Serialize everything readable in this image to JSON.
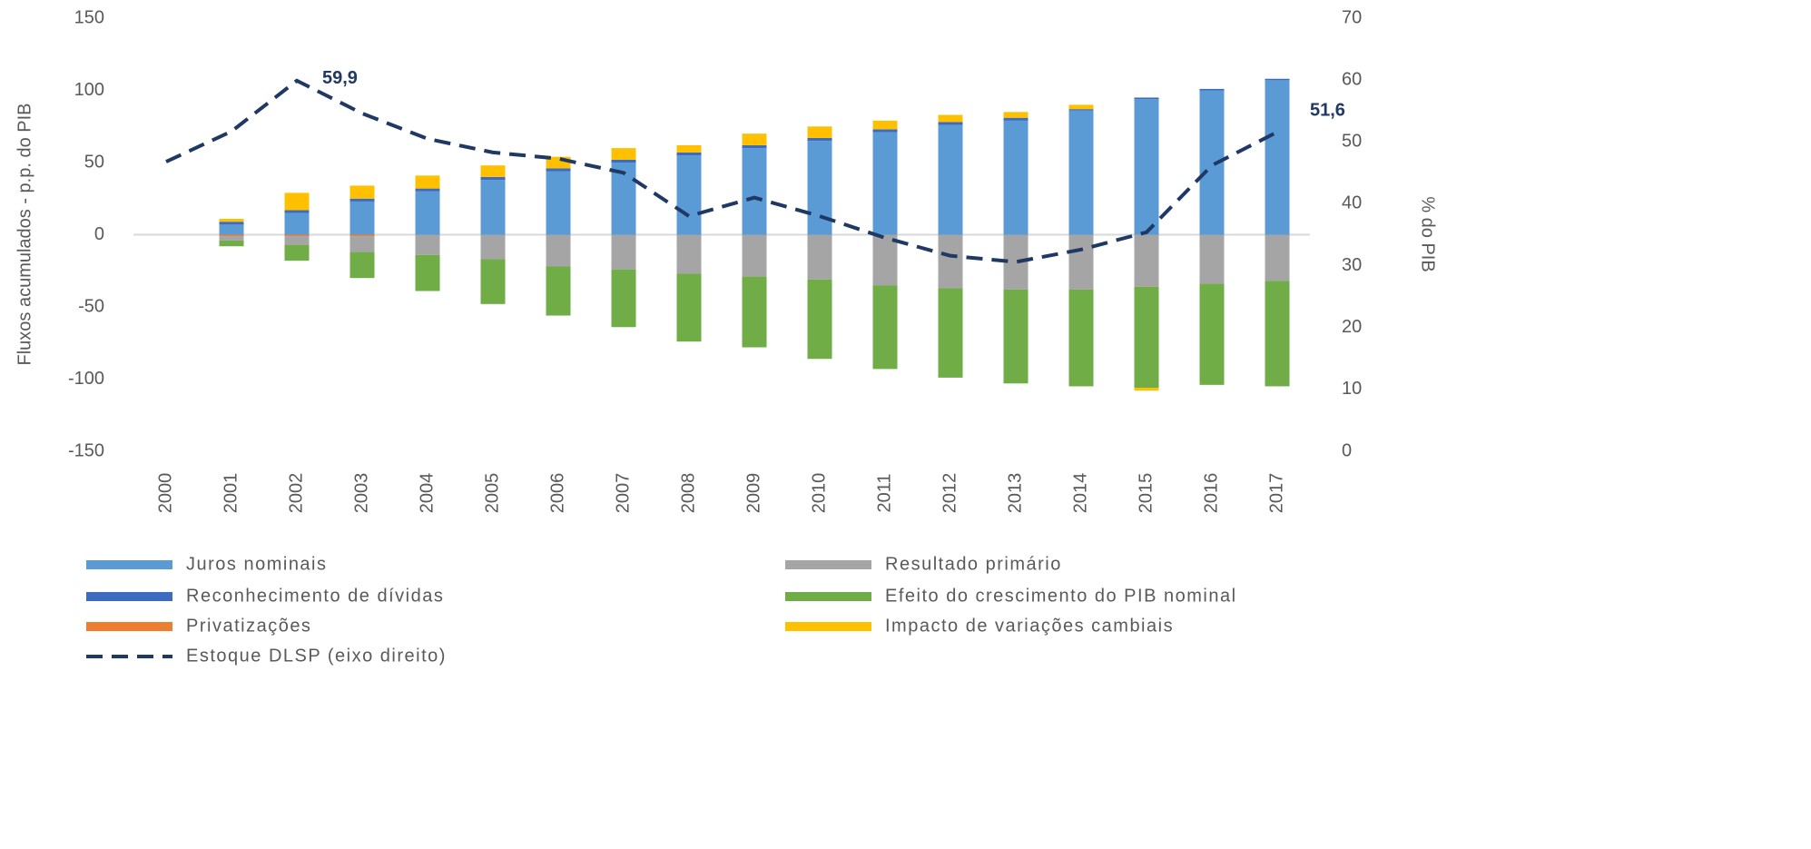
{
  "chart_data": {
    "type": "bar",
    "categories": [
      "2000",
      "2001",
      "2002",
      "2003",
      "2004",
      "2005",
      "2006",
      "2007",
      "2008",
      "2009",
      "2010",
      "2011",
      "2012",
      "2013",
      "2014",
      "2015",
      "2016",
      "2017"
    ],
    "y_label": "Fluxos acumulados - p.p. do PIB",
    "y2_label": "% do PIB",
    "ylim": [
      -150,
      150
    ],
    "yticks": [
      -150,
      -100,
      -50,
      0,
      50,
      100,
      150
    ],
    "y2lim": [
      0,
      70
    ],
    "y2ticks": [
      0,
      10,
      20,
      30,
      40,
      50,
      60,
      70
    ],
    "stacked": true,
    "series": [
      {
        "name": "Juros nominais",
        "color": "#5b9bd5",
        "values": [
          0,
          7,
          15,
          23,
          30,
          38,
          44,
          50,
          55,
          60,
          65,
          71,
          76,
          79,
          86,
          94,
          100,
          107
        ]
      },
      {
        "name": "Reconhecimento de dívidas",
        "color": "#3c6bbf",
        "values": [
          0,
          2,
          2,
          2,
          2,
          2,
          2,
          2,
          2,
          2,
          2,
          2,
          2,
          2,
          1,
          1,
          1,
          1
        ]
      },
      {
        "name": "Privatizações",
        "color": "#ed7d31",
        "values": [
          0,
          -1,
          -1,
          -1,
          0,
          0,
          0,
          0,
          0,
          0,
          0,
          0,
          0,
          0,
          0,
          0,
          0,
          0
        ]
      },
      {
        "name": "Resultado primário",
        "color": "#a5a5a5",
        "values": [
          0,
          -3,
          -6,
          -11,
          -14,
          -17,
          -22,
          -24,
          -27,
          -29,
          -31,
          -35,
          -37,
          -38,
          -38,
          -36,
          -34,
          -32
        ]
      },
      {
        "name": "Efeito do crescimento do PIB nominal",
        "color": "#70ad47",
        "values": [
          0,
          -4,
          -11,
          -18,
          -25,
          -31,
          -34,
          -40,
          -47,
          -49,
          -55,
          -58,
          -62,
          -65,
          -67,
          -70,
          -70,
          -73
        ]
      },
      {
        "name": "Impacto de variações cambiais",
        "color": "#ffc000",
        "values": [
          0,
          2,
          12,
          9,
          9,
          8,
          8,
          8,
          5,
          8,
          8,
          6,
          5,
          4,
          3,
          -2,
          0,
          0
        ]
      },
      {
        "name": "Estoque DLSP (eixo direito)",
        "color": "#1f3864",
        "type": "line",
        "dashed": true,
        "axis": "y2",
        "values": [
          46.8,
          51.7,
          59.9,
          54.6,
          50.5,
          48.3,
          47.3,
          45,
          38,
          41,
          38,
          34.5,
          31.6,
          30.6,
          32.6,
          35.4,
          46.2,
          51.6
        ],
        "value_labels": [
          null,
          null,
          "59,9",
          null,
          null,
          null,
          null,
          null,
          null,
          null,
          null,
          null,
          null,
          null,
          null,
          null,
          null,
          "51,6"
        ]
      }
    ]
  }
}
